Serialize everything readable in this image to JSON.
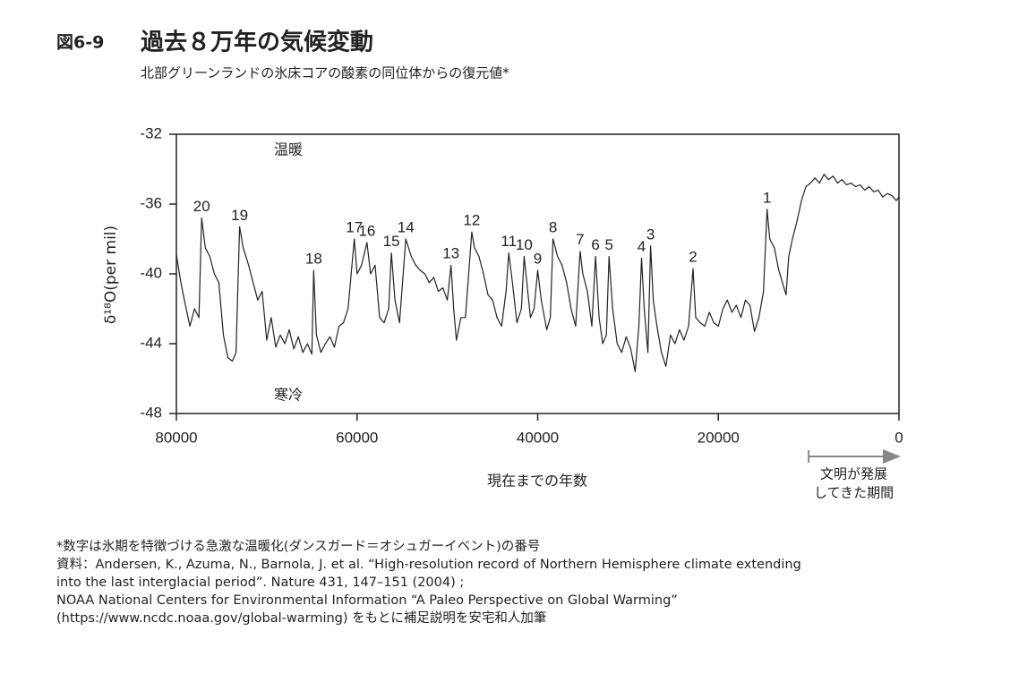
{
  "chart_data": {
    "type": "line",
    "figure_label": "図6-9",
    "title": "過去８万年の気候変動",
    "subtitle": "北部グリーンランドの氷床コアの酸素の同位体からの復元値*",
    "y_label": "δ¹⁸O(per mil)",
    "x_label": "現在までの年数",
    "warm_label": "温暖",
    "cold_label": "寒冷",
    "color": "#222222",
    "xlim": [
      80000,
      0
    ],
    "xticks": [
      80000,
      60000,
      40000,
      20000,
      0
    ],
    "ylim": [
      -32,
      -48
    ],
    "yticks": [
      -32,
      -36,
      -40,
      -44,
      -48
    ],
    "x": [
      80000,
      79500,
      79000,
      78500,
      78000,
      77500,
      77200,
      76800,
      76300,
      75800,
      75300,
      74800,
      74300,
      73800,
      73400,
      73000,
      72600,
      72000,
      71500,
      71000,
      70500,
      70000,
      69500,
      69000,
      68500,
      68000,
      67500,
      67000,
      66500,
      66000,
      65500,
      65000,
      64800,
      64500,
      64000,
      63500,
      63000,
      62500,
      62000,
      61500,
      61000,
      60300,
      60000,
      59500,
      58900,
      58500,
      58000,
      57500,
      57000,
      56500,
      56200,
      55800,
      55300,
      54600,
      54000,
      53500,
      53000,
      52500,
      52000,
      51500,
      51000,
      50500,
      50000,
      49600,
      49300,
      49000,
      48500,
      48000,
      47300,
      47000,
      46500,
      46000,
      45500,
      45000,
      44500,
      44000,
      43500,
      43200,
      42800,
      42300,
      41800,
      41500,
      41200,
      40800,
      40400,
      40000,
      39600,
      39000,
      38600,
      38300,
      37800,
      37300,
      36800,
      36300,
      35800,
      35300,
      35000,
      34500,
      34000,
      33600,
      33200,
      32800,
      32400,
      32100,
      31700,
      31200,
      30700,
      30200,
      29700,
      29200,
      28800,
      28500,
      28200,
      27800,
      27500,
      27200,
      26800,
      26300,
      25800,
      25300,
      24800,
      24300,
      23800,
      23300,
      22800,
      22500,
      22000,
      21500,
      21000,
      20500,
      20000,
      19500,
      19000,
      18500,
      18000,
      17500,
      17000,
      16500,
      16000,
      15500,
      15000,
      14600,
      14300,
      13800,
      13300,
      12900,
      12500,
      12200,
      11800,
      11300,
      10800,
      10300,
      9800,
      9300,
      8800,
      8300,
      7800,
      7300,
      6800,
      6300,
      5800,
      5300,
      4800,
      4300,
      3800,
      3300,
      2800,
      2300,
      1800,
      1300,
      800,
      300,
      0
    ],
    "values": [
      -38.9,
      -40.5,
      -41.8,
      -43.0,
      -42.0,
      -42.5,
      -36.8,
      -38.5,
      -39.0,
      -40.0,
      -40.5,
      -43.5,
      -44.8,
      -45.0,
      -44.5,
      -37.3,
      -38.5,
      -39.5,
      -40.5,
      -41.5,
      -41.0,
      -43.8,
      -42.5,
      -44.2,
      -43.5,
      -44.0,
      -43.2,
      -44.3,
      -43.6,
      -44.5,
      -44.0,
      -44.6,
      -39.8,
      -43.5,
      -44.5,
      -44.0,
      -43.6,
      -44.2,
      -43.0,
      -42.8,
      -42.0,
      -38.0,
      -40.0,
      -39.5,
      -38.2,
      -40.0,
      -39.5,
      -42.5,
      -42.8,
      -42.0,
      -38.8,
      -41.5,
      -42.8,
      -38.0,
      -39.0,
      -39.5,
      -39.8,
      -40.0,
      -40.5,
      -40.2,
      -41.0,
      -40.8,
      -41.5,
      -39.5,
      -42.0,
      -43.8,
      -42.5,
      -42.5,
      -37.6,
      -38.5,
      -39.0,
      -40.0,
      -41.2,
      -41.5,
      -42.5,
      -43.0,
      -41.0,
      -38.8,
      -40.5,
      -42.8,
      -42.0,
      -39.0,
      -40.5,
      -42.5,
      -42.0,
      -39.8,
      -41.5,
      -43.2,
      -42.5,
      -38.0,
      -39.0,
      -39.5,
      -40.5,
      -42.0,
      -43.0,
      -38.7,
      -40.0,
      -41.0,
      -43.0,
      -39.0,
      -42.5,
      -44.0,
      -43.5,
      -39.0,
      -42.0,
      -44.0,
      -44.5,
      -43.6,
      -44.3,
      -45.6,
      -43.0,
      -39.1,
      -42.0,
      -44.5,
      -38.4,
      -41.5,
      -43.0,
      -44.5,
      -45.3,
      -43.5,
      -44.0,
      -43.2,
      -43.8,
      -43.0,
      -39.7,
      -42.5,
      -42.8,
      -43.0,
      -42.2,
      -42.8,
      -43.0,
      -42.0,
      -41.5,
      -42.2,
      -41.8,
      -42.5,
      -41.5,
      -41.8,
      -43.3,
      -42.5,
      -41.0,
      -36.3,
      -38.0,
      -38.5,
      -39.8,
      -40.5,
      -41.2,
      -39.0,
      -38.0,
      -37.0,
      -35.8,
      -35.0,
      -34.8,
      -34.5,
      -34.8,
      -34.3,
      -34.6,
      -34.4,
      -34.8,
      -34.6,
      -34.9,
      -34.8,
      -35.0,
      -34.9,
      -35.2,
      -35.0,
      -35.3,
      -35.2,
      -35.6,
      -35.4,
      -35.5,
      -35.8,
      -35.6
    ],
    "events": [
      {
        "label": "20",
        "x": 77200,
        "value": -36.8
      },
      {
        "label": "19",
        "x": 73000,
        "value": -37.3
      },
      {
        "label": "18",
        "x": 64800,
        "value": -39.8
      },
      {
        "label": "17",
        "x": 60300,
        "value": -38.0
      },
      {
        "label": "16",
        "x": 58900,
        "value": -38.2
      },
      {
        "label": "15",
        "x": 56200,
        "value": -38.8
      },
      {
        "label": "14",
        "x": 54600,
        "value": -38.0
      },
      {
        "label": "13",
        "x": 49600,
        "value": -39.5
      },
      {
        "label": "12",
        "x": 47300,
        "value": -37.6
      },
      {
        "label": "11",
        "x": 43200,
        "value": -38.8
      },
      {
        "label": "10",
        "x": 41500,
        "value": -39.0
      },
      {
        "label": "9",
        "x": 40000,
        "value": -39.8
      },
      {
        "label": "8",
        "x": 38300,
        "value": -38.0
      },
      {
        "label": "7",
        "x": 35300,
        "value": -38.7
      },
      {
        "label": "6",
        "x": 33600,
        "value": -39.0
      },
      {
        "label": "5",
        "x": 32100,
        "value": -39.0
      },
      {
        "label": "4",
        "x": 28500,
        "value": -39.1
      },
      {
        "label": "3",
        "x": 27500,
        "value": -38.4
      },
      {
        "label": "2",
        "x": 22800,
        "value": -39.7
      },
      {
        "label": "1",
        "x": 14600,
        "value": -36.3
      }
    ],
    "period": {
      "label": [
        "文明が発展",
        "してきた期間"
      ],
      "from": 10000,
      "to": 0
    },
    "notes": [
      "*数字は氷期を特徴づける急激な温暖化(ダンスガード＝オシュガーイベント)の番号",
      "資料：Andersen, K., Azuma, N., Barnola, J. et al. “High-resolution record of Northern Hemisphere climate extending",
      "into the last interglacial period”. Nature 431, 147–151 (2004) ;",
      "NOAA National Centers for Environmental Information “A Paleo Perspective on Global Warming”",
      "(https://www.ncdc.noaa.gov/global-warming) をもとに補足説明を安宅和人加筆"
    ]
  }
}
